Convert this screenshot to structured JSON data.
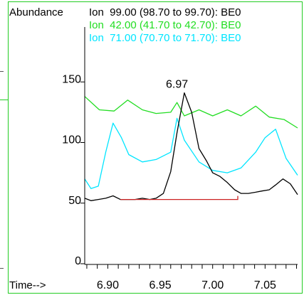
{
  "chart_data": {
    "type": "line",
    "ylabel": "Abundance",
    "xlabel": "Time-->",
    "xlim": [
      6.878,
      7.081
    ],
    "ylim": [
      0,
      200
    ],
    "x_ticks": [
      6.9,
      6.95,
      7.0,
      7.05
    ],
    "x_tick_labels": [
      "6.90",
      "6.95",
      "7.00",
      "7.05"
    ],
    "y_ticks": [
      0,
      50,
      100,
      150
    ],
    "y_tick_labels": [
      "0",
      "50",
      "100",
      "150"
    ],
    "legend": [
      {
        "text": "Ion  99.00 (98.70 to 99.70): BE0",
        "color": "#000000"
      },
      {
        "text": "Ion  42.00 (41.70 to 42.70): BE0",
        "color": "#22dd22"
      },
      {
        "text": "Ion  71.00 (70.70 to 71.70): BE0",
        "color": "#00e5ff"
      }
    ],
    "series": [
      {
        "color": "#22dd22",
        "x": [
          6.878,
          6.892,
          6.906,
          6.919,
          6.933,
          6.946,
          6.96,
          6.966,
          6.973,
          6.987,
          7.0,
          7.014,
          7.027,
          7.041,
          7.054,
          7.068,
          7.081
        ],
        "values": [
          138,
          127,
          126,
          135,
          127,
          124,
          125,
          133,
          122,
          127,
          122,
          127,
          122,
          130,
          121,
          119,
          112
        ]
      },
      {
        "color": "#00e5ff",
        "x": [
          6.878,
          6.884,
          6.891,
          6.898,
          6.905,
          6.913,
          6.92,
          6.933,
          6.946,
          6.96,
          6.966,
          6.973,
          6.987,
          7.0,
          7.014,
          7.027,
          7.041,
          7.05,
          7.06,
          7.07,
          7.081
        ],
        "values": [
          70,
          62,
          64,
          92,
          116,
          104,
          90,
          84,
          86,
          92,
          120,
          102,
          84,
          77,
          75,
          79,
          92,
          104,
          111,
          87,
          73
        ]
      },
      {
        "color": "#000000",
        "x": [
          6.878,
          6.884,
          6.891,
          6.898,
          6.905,
          6.912,
          6.919,
          6.926,
          6.933,
          6.94,
          6.946,
          6.953,
          6.96,
          6.966,
          6.973,
          6.98,
          6.987,
          6.994,
          7.0,
          7.007,
          7.014,
          7.021,
          7.027,
          7.034,
          7.041,
          7.047,
          7.054,
          7.06,
          7.067,
          7.074,
          7.081
        ],
        "values": [
          54,
          52,
          53,
          54,
          56,
          53,
          53,
          53,
          54,
          53,
          54,
          58,
          76,
          108,
          141,
          125,
          95,
          85,
          75,
          72,
          67,
          61,
          58,
          58,
          59,
          60,
          61,
          65,
          70,
          66,
          57
        ]
      }
    ],
    "integration_baseline": {
      "color": "#cc2222",
      "x": [
        6.912,
        7.024
      ],
      "y": 53
    },
    "peak_label": {
      "text": "6.97",
      "x": 6.966,
      "y": 141
    }
  }
}
